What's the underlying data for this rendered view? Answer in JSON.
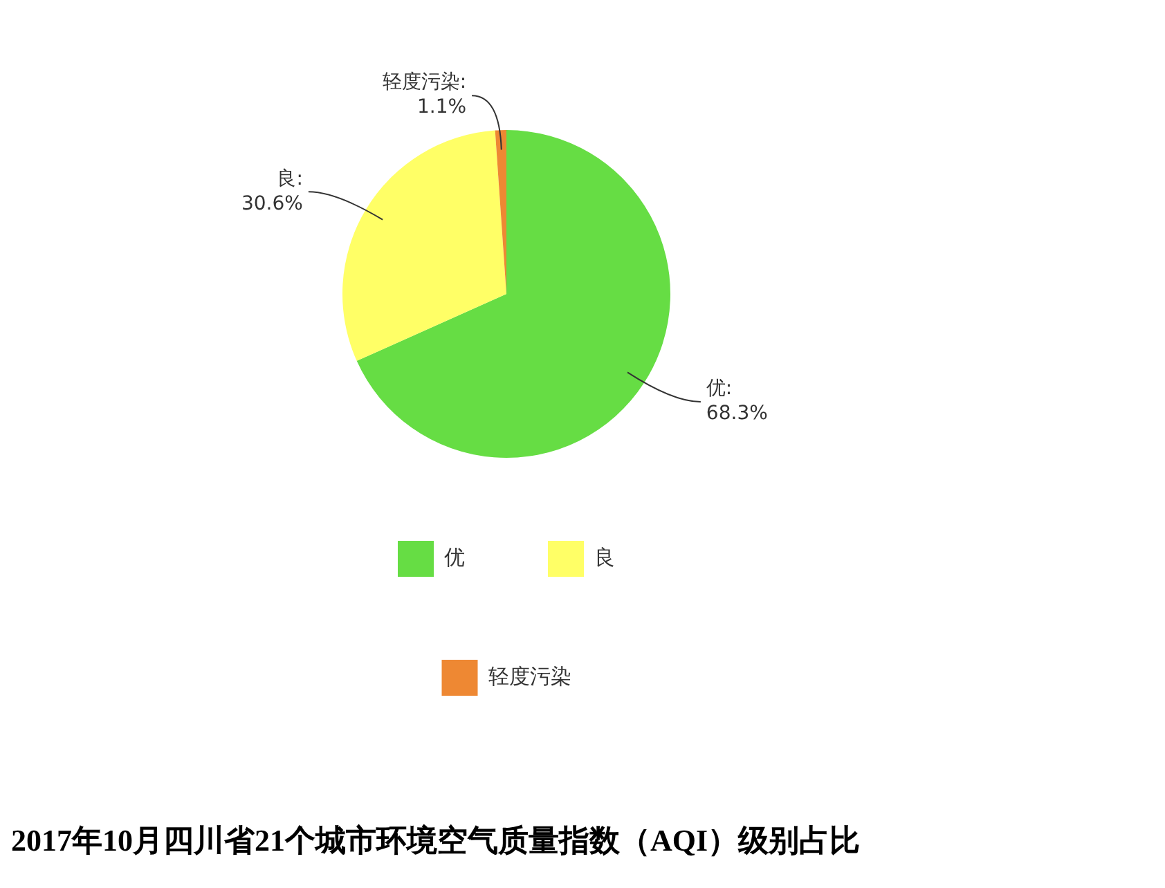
{
  "chart_data": {
    "type": "pie",
    "title": "2017年10月四川省21个城市环境空气质量指数（AQI）级别占比",
    "categories": [
      "优",
      "良",
      "轻度污染"
    ],
    "values": [
      68.3,
      30.6,
      1.1
    ],
    "colors": [
      "#66dd44",
      "#ffff66",
      "#ee8833"
    ],
    "value_labels": [
      "优: 68.3%",
      "良: 30.6%",
      "轻度污染: 1.1%"
    ],
    "legend": "bottom"
  }
}
